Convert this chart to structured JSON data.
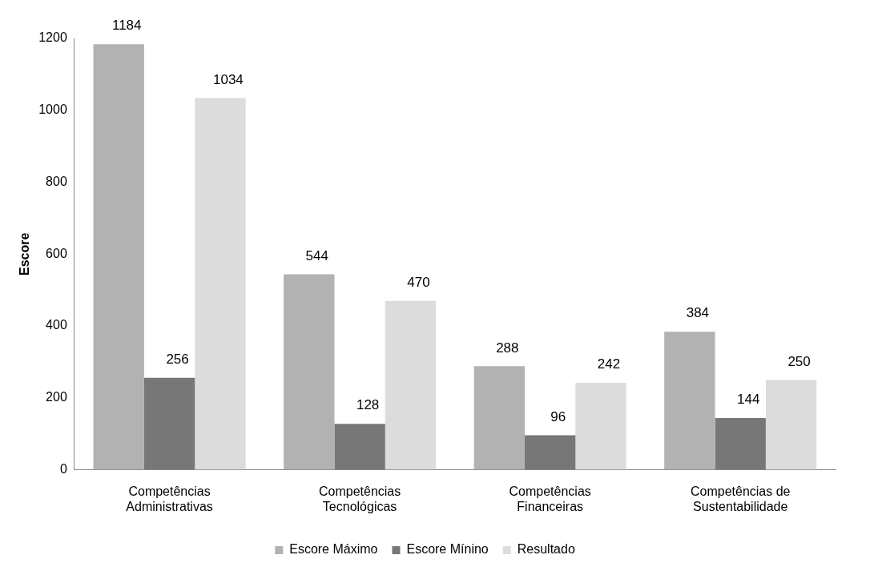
{
  "chart_data": {
    "type": "bar",
    "ylabel": "Escore",
    "categories": [
      "Competências Administrativas",
      "Competências Tecnológicas",
      "Competências Financeiras",
      "Competências de Sustentabilidade"
    ],
    "series": [
      {
        "name": "Escore Máximo",
        "color": "#b2b2b2",
        "values": [
          1184,
          544,
          288,
          384
        ]
      },
      {
        "name": "Escore Mínino",
        "color": "#777777",
        "values": [
          256,
          128,
          96,
          144
        ]
      },
      {
        "name": "Resultado",
        "color": "#dcdcdc",
        "values": [
          1034,
          470,
          242,
          250
        ]
      }
    ],
    "ylim": [
      0,
      1200
    ],
    "yticks": [
      0,
      200,
      400,
      600,
      800,
      1000,
      1200
    ],
    "data_labels": true,
    "legend": "bottom",
    "grid": false
  }
}
